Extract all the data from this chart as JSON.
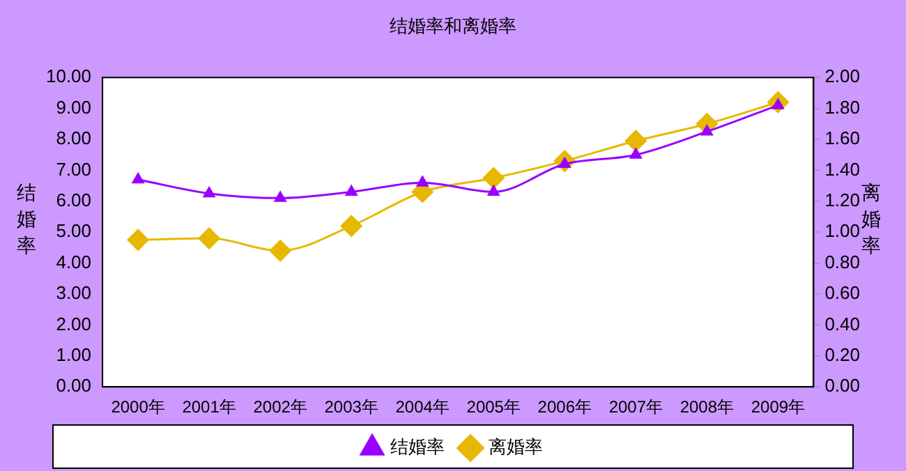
{
  "chart_data": {
    "type": "line",
    "title": "结婚率和离婚率",
    "ylabel": "结婚率",
    "y2label": "离婚率",
    "categories": [
      "2000年",
      "2001年",
      "2002年",
      "2003年",
      "2004年",
      "2005年",
      "2006年",
      "2007年",
      "2008年",
      "2009年"
    ],
    "series": [
      {
        "name": "结婚率",
        "color": "#9900ff",
        "marker": "triangle",
        "values": [
          6.7,
          6.25,
          6.1,
          6.3,
          6.6,
          6.3,
          7.2,
          7.5,
          8.25,
          9.1
        ]
      },
      {
        "name": "离婚率",
        "color": "#e6b800",
        "marker": "diamond",
        "axis": "y2",
        "values": [
          0.95,
          0.96,
          0.88,
          1.04,
          1.26,
          1.35,
          1.46,
          1.59,
          1.7,
          1.84
        ]
      }
    ],
    "ylim": [
      0,
      10
    ],
    "yticks": [
      {
        "value": 0,
        "label": "0.00"
      },
      {
        "value": 1,
        "label": "1.00"
      },
      {
        "value": 2,
        "label": "2.00"
      },
      {
        "value": 3,
        "label": "3.00"
      },
      {
        "value": 4,
        "label": "4.00"
      },
      {
        "value": 5,
        "label": "5.00"
      },
      {
        "value": 6,
        "label": "6.00"
      },
      {
        "value": 7,
        "label": "7.00"
      },
      {
        "value": 8,
        "label": "8.00"
      },
      {
        "value": 9,
        "label": "9.00"
      },
      {
        "value": 10,
        "label": "10.00"
      }
    ],
    "y2lim": [
      0,
      2
    ],
    "y2ticks": [
      {
        "value": 0,
        "label": "0.00"
      },
      {
        "value": 0.2,
        "label": "0.20"
      },
      {
        "value": 0.4,
        "label": "0.40"
      },
      {
        "value": 0.6,
        "label": "0.60"
      },
      {
        "value": 0.8,
        "label": "0.80"
      },
      {
        "value": 1,
        "label": "1.00"
      },
      {
        "value": 1.2,
        "label": "1.20"
      },
      {
        "value": 1.4,
        "label": "1.40"
      },
      {
        "value": 1.6,
        "label": "1.60"
      },
      {
        "value": 1.8,
        "label": "1.80"
      },
      {
        "value": 2,
        "label": "2.00"
      }
    ],
    "grid": false,
    "legend": "bottom",
    "line_style": "solid"
  }
}
